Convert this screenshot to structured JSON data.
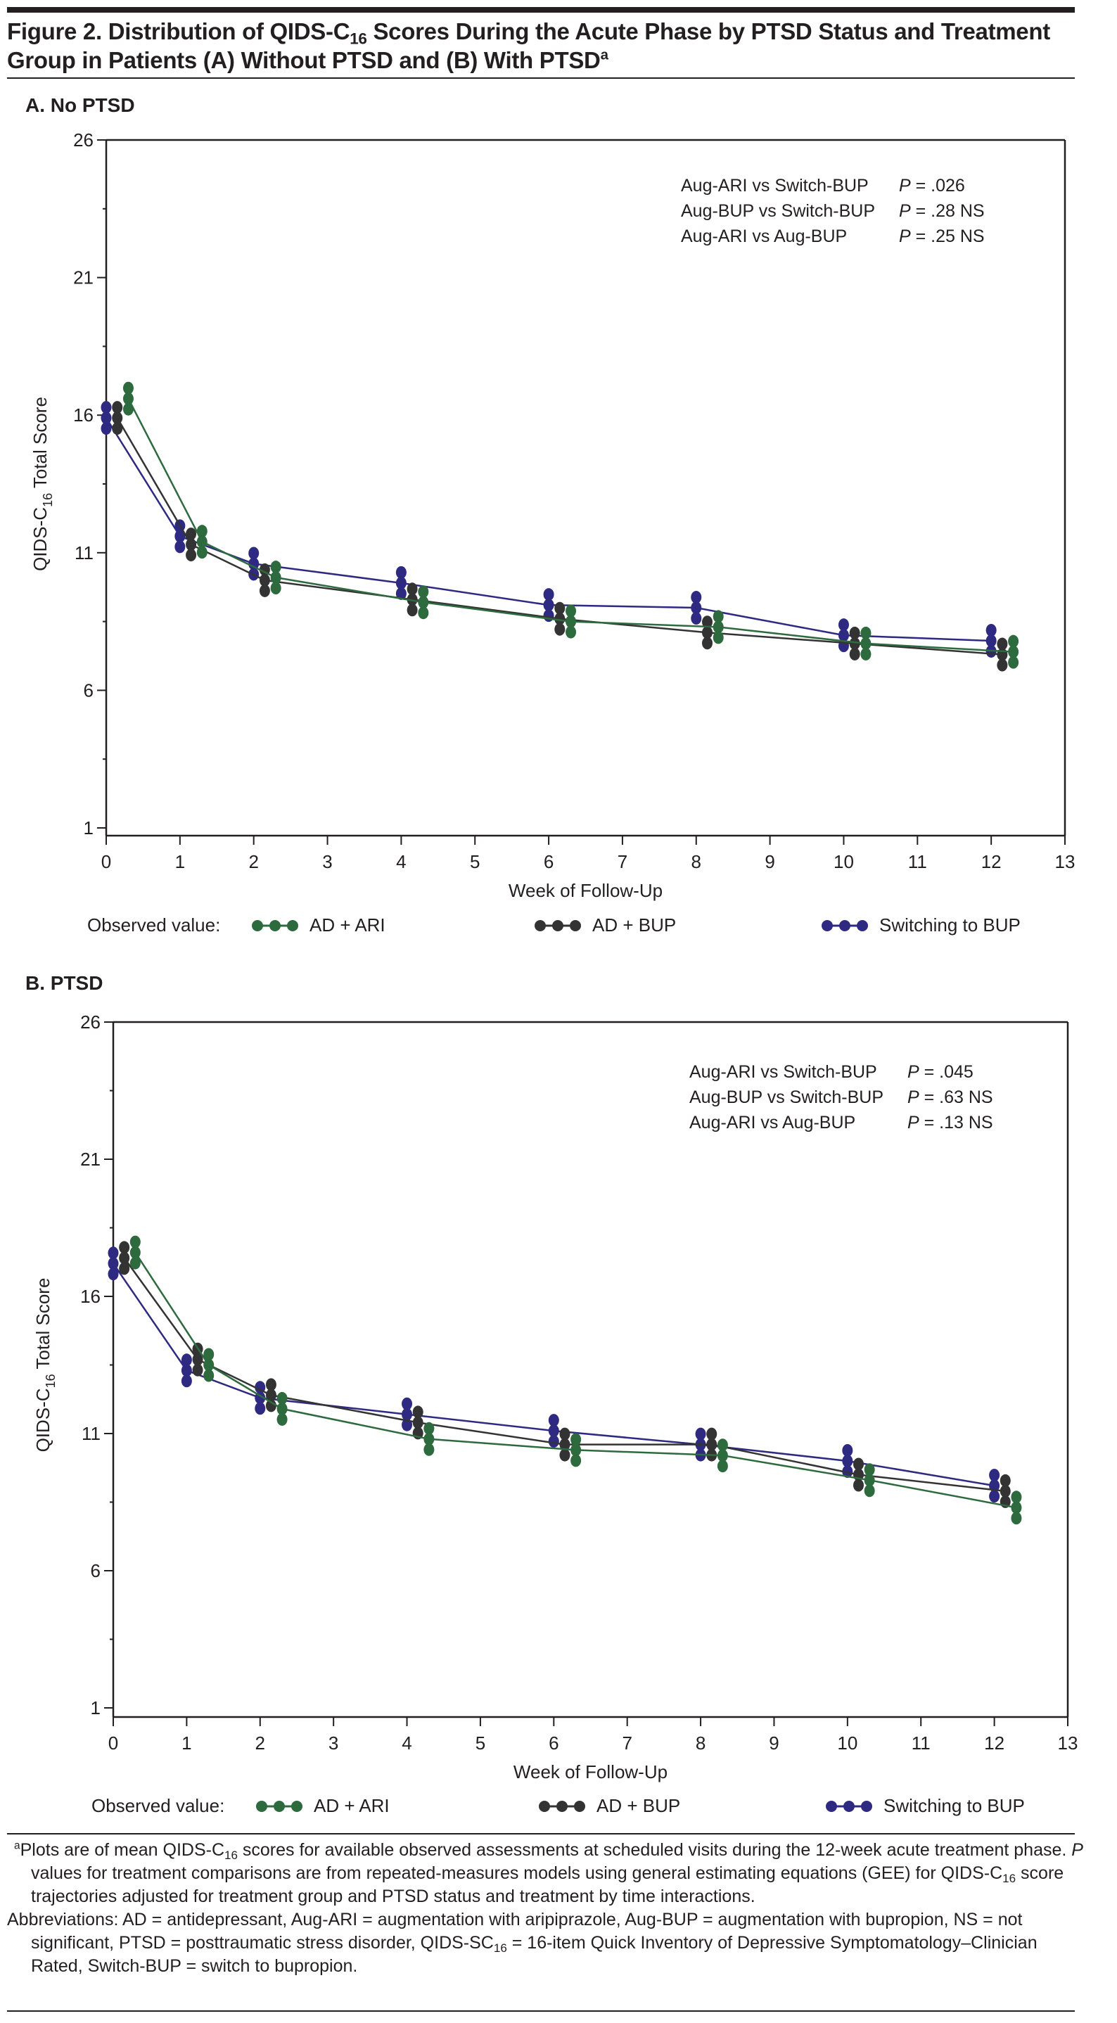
{
  "figure": {
    "title_parts": [
      "Figure 2. Distribution of QIDS-C",
      "16",
      " Scores During the Acute Phase by PTSD Status and Treatment Group in Patients (A) Without PTSD and (B) With PTSD",
      "a"
    ],
    "colors": {
      "AD + ARI": "#2d6a3e",
      "AD + BUP": "#333333",
      "Switching to BUP": "#2e2a82",
      "axis": "#231f20"
    }
  },
  "legend": {
    "title": "Observed value:",
    "items": [
      "AD + ARI",
      "AD + BUP",
      "Switching to BUP"
    ]
  },
  "chart_data": [
    {
      "type": "line",
      "panel_label": "A. No PTSD",
      "title": "A. No PTSD",
      "xlabel": "Week of Follow-Up",
      "ylabel_parts": [
        "QIDS-C",
        "16",
        " Total Score"
      ],
      "xlim": [
        0,
        13
      ],
      "ylim": [
        1,
        26
      ],
      "xticks": [
        0,
        1,
        2,
        3,
        4,
        5,
        6,
        7,
        8,
        9,
        10,
        11,
        12,
        13
      ],
      "yticks": [
        1,
        6,
        11,
        16,
        21,
        26
      ],
      "grid": false,
      "legend_position": "bottom",
      "annotations": [
        {
          "comparison": "Aug-ARI vs Switch-BUP",
          "p_value": "P = .026"
        },
        {
          "comparison": "Aug-BUP vs Switch-BUP",
          "p_value": "P = .28 NS"
        },
        {
          "comparison": "Aug-ARI vs Aug-BUP",
          "p_value": "P = .25 NS"
        }
      ],
      "x": [
        0,
        1,
        2,
        4,
        6,
        8,
        10,
        12
      ],
      "series": [
        {
          "name": "Switching to BUP",
          "x_offset": 0.0,
          "values": [
            15.9,
            11.6,
            10.6,
            9.9,
            9.1,
            9.0,
            8.0,
            7.8
          ]
        },
        {
          "name": "AD + BUP",
          "x_offset": 0.15,
          "values": [
            15.9,
            11.3,
            10.0,
            9.3,
            8.6,
            8.1,
            7.7,
            7.3
          ]
        },
        {
          "name": "AD + ARI",
          "x_offset": 0.3,
          "values": [
            16.6,
            11.4,
            10.1,
            9.2,
            8.5,
            8.3,
            7.7,
            7.4
          ]
        }
      ]
    },
    {
      "type": "line",
      "panel_label": "B. PTSD",
      "title": "B. PTSD",
      "xlabel": "Week of Follow-Up",
      "ylabel_parts": [
        "QIDS-C",
        "16",
        " Total Score"
      ],
      "xlim": [
        0,
        13
      ],
      "ylim": [
        1,
        26
      ],
      "xticks": [
        0,
        1,
        2,
        3,
        4,
        5,
        6,
        7,
        8,
        9,
        10,
        11,
        12,
        13
      ],
      "yticks": [
        1,
        6,
        11,
        16,
        21,
        26
      ],
      "grid": false,
      "legend_position": "bottom",
      "annotations": [
        {
          "comparison": "Aug-ARI vs Switch-BUP",
          "p_value": "P = .045"
        },
        {
          "comparison": "Aug-BUP vs Switch-BUP",
          "p_value": "P = .63 NS"
        },
        {
          "comparison": "Aug-ARI vs Aug-BUP",
          "p_value": "P = .13 NS"
        }
      ],
      "x": [
        0,
        1,
        2,
        4,
        6,
        8,
        10,
        12
      ],
      "series": [
        {
          "name": "Switching to BUP",
          "x_offset": 0.0,
          "values": [
            17.2,
            13.3,
            12.3,
            11.7,
            11.1,
            10.6,
            10.0,
            9.1
          ]
        },
        {
          "name": "AD + BUP",
          "x_offset": 0.15,
          "values": [
            17.4,
            13.7,
            12.4,
            11.4,
            10.6,
            10.6,
            9.5,
            8.9
          ]
        },
        {
          "name": "AD + ARI",
          "x_offset": 0.3,
          "values": [
            17.6,
            13.5,
            11.9,
            10.8,
            10.4,
            10.2,
            9.3,
            8.3
          ]
        }
      ]
    }
  ],
  "footnotes": {
    "note_a_parts": [
      "a",
      "Plots are of mean QIDS-C",
      "16",
      " scores for available observed assessments at scheduled visits during the 12-week acute treatment phase. ",
      "P",
      " values for treatment comparisons are from repeated-measures models using general estimating equations (GEE) for QIDS-C",
      "16",
      " score trajectories adjusted for treatment group and PTSD status and treatment by time interactions."
    ],
    "abbreviations_parts": [
      "Abbreviations: AD = antidepressant, Aug-ARI = augmentation with aripiprazole, Aug-BUP = augmentation with bupropion, NS = not significant, PTSD = posttraumatic stress disorder, QIDS-SC",
      "16",
      " = 16-item Quick Inventory of Depressive Symptomatology–Clinician Rated, Switch-BUP = switch to bupropion."
    ]
  }
}
